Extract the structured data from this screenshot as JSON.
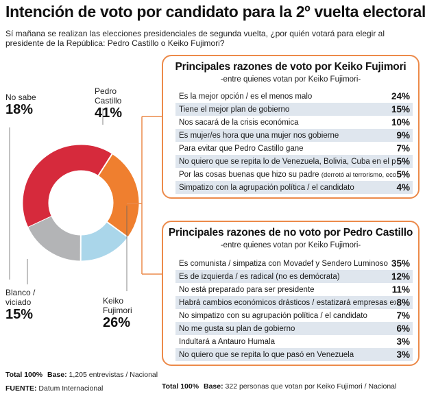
{
  "header": {
    "title": "Intención de voto por candidato para la 2º vuelta electoral",
    "subtitle": "Sí mañana se realizan las elecciones presidenciales de segunda vuelta, ¿por quién votará para elegir al presidente de la República: Pedro Castillo o Keiko Fujimori?"
  },
  "colors": {
    "castillo": "#d62a3c",
    "keiko": "#ef7f2f",
    "blanco": "#aad6ea",
    "nosabe": "#b3b4b6",
    "accent_border": "#ec8a4a",
    "row_shade": "#dfe6ee"
  },
  "chart_data": [
    {
      "type": "pie",
      "series": [
        {
          "name": "Pedro Castillo",
          "value": 41,
          "label_text": "Pedro\nCastillo",
          "pct_text": "41%"
        },
        {
          "name": "Keiko Fujimori",
          "value": 26,
          "label_text": "Keiko\nFujimori",
          "pct_text": "26%"
        },
        {
          "name": "Blanco / viciado",
          "value": 15,
          "label_text": "Blanco /\nviciado",
          "pct_text": "15%"
        },
        {
          "name": "No sabe",
          "value": 18,
          "label_text": "No sabe",
          "pct_text": "18%"
        }
      ],
      "footnote": {
        "total_label": "Total 100%",
        "base_label": "Base:",
        "base_text": "1,205 entrevistas / Nacional"
      }
    },
    {
      "type": "table",
      "title": "Principales razones de voto por Keiko Fujimori",
      "subtitle": "-entre quienes votan por Keiko Fujimori-",
      "rows": [
        {
          "label": "Es la mejor opción / es el menos malo",
          "value": 24,
          "value_text": "24%"
        },
        {
          "label": "Tiene el mejor plan de gobierno",
          "value": 15,
          "value_text": "15%"
        },
        {
          "label": "Nos sacará de la crisis económica",
          "value": 10,
          "value_text": "10%"
        },
        {
          "label": "Es mujer/es hora que una mujer nos gobierne",
          "value": 9,
          "value_text": "9%"
        },
        {
          "label": "Para evitar que Pedro Castillo gane",
          "value": 7,
          "value_text": "7%"
        },
        {
          "label": "No quiero que se repita lo de Venezuela, Bolivia, Cuba en el país",
          "value": 5,
          "value_text": "5%"
        },
        {
          "label": "Por las cosas buenas que hizo su padre",
          "note": "(derrotó al terrorismo, economía)",
          "value": 5,
          "value_text": "5%"
        },
        {
          "label": "Simpatizo con la agrupación política / el candidato",
          "value": 4,
          "value_text": "4%"
        }
      ]
    },
    {
      "type": "table",
      "title": "Principales razones de no voto por Pedro Castillo",
      "subtitle": "-entre quienes votan por Keiko Fujimori-",
      "rows": [
        {
          "label": "Es comunista / simpatiza con Movadef y Sendero Luminoso",
          "value": 35,
          "value_text": "35%"
        },
        {
          "label": "Es de izquierda / es radical (no es demócrata)",
          "value": 12,
          "value_text": "12%"
        },
        {
          "label": "No está preparado para ser presidente",
          "value": 11,
          "value_text": "11%"
        },
        {
          "label": "Habrá cambios económicos drásticos / estatizará empresas ext.",
          "value": 8,
          "value_text": "8%"
        },
        {
          "label": "No simpatizo con su agrupación política / el candidato",
          "value": 7,
          "value_text": "7%"
        },
        {
          "label": "No me gusta su plan de gobierno",
          "value": 6,
          "value_text": "6%"
        },
        {
          "label": "Indultará a Antauro Humala",
          "value": 3,
          "value_text": "3%"
        },
        {
          "label": "No quiero que se repita lo que pasó en Venezuela",
          "value": 3,
          "value_text": "3%"
        }
      ],
      "footnote": {
        "total_label": "Total 100%",
        "base_label": "Base:",
        "base_text": "322 personas que votan por Keiko Fujimori / Nacional"
      }
    }
  ],
  "source": {
    "label": "FUENTE:",
    "text": "Datum Internacional"
  }
}
